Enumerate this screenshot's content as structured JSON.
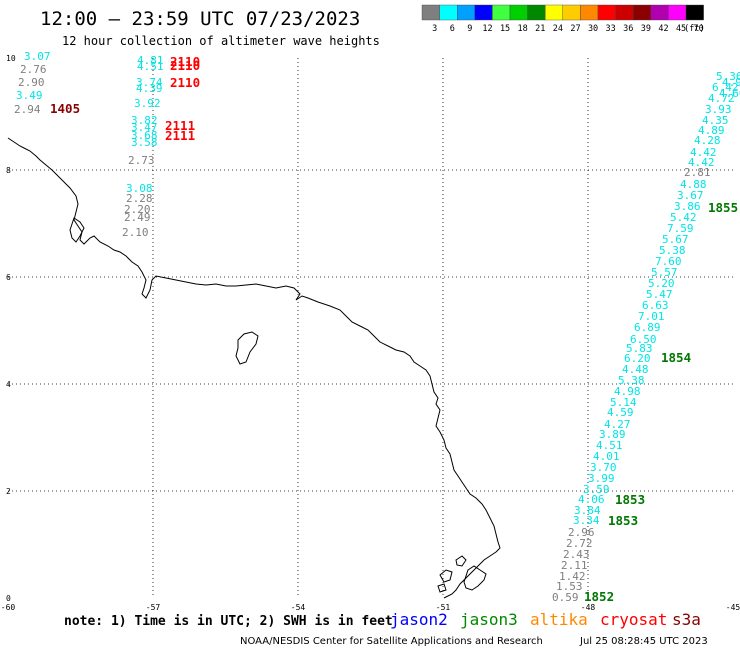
{
  "title": "12:00 — 23:59 UTC 07/23/2023",
  "subtitle": "12 hour collection of altimeter wave heights",
  "legend": {
    "unit": "(ft)",
    "bins": [
      {
        "label": "3",
        "color": "#7f7f7f"
      },
      {
        "label": "6",
        "color": "#00ffff"
      },
      {
        "label": "9",
        "color": "#00a0ff"
      },
      {
        "label": "12",
        "color": "#0000ff"
      },
      {
        "label": "15",
        "color": "#40ff40"
      },
      {
        "label": "18",
        "color": "#00d000"
      },
      {
        "label": "21",
        "color": "#008800"
      },
      {
        "label": "24",
        "color": "#ffff00"
      },
      {
        "label": "27",
        "color": "#ffcc00"
      },
      {
        "label": "30",
        "color": "#ff8800"
      },
      {
        "label": "33",
        "color": "#ff0000"
      },
      {
        "label": "36",
        "color": "#cc0000"
      },
      {
        "label": "39",
        "color": "#8b0000"
      },
      {
        "label": "42",
        "color": "#b000b0"
      },
      {
        "label": "45",
        "color": "#ff00ff"
      },
      {
        "label": "70",
        "color": "#000000"
      }
    ]
  },
  "axes": {
    "lon_labels": [
      "-60",
      "-57",
      "-54",
      "-51",
      "-48",
      "-45"
    ],
    "lat_labels": [
      "0",
      "2",
      "4",
      "6",
      "8",
      "10"
    ]
  },
  "colors": {
    "grey": "#7f7f7f",
    "cyan": "#00e5e5",
    "red": "#ff0000",
    "darkred": "#8b0000",
    "green": "#007700"
  },
  "measurements": [
    {
      "t": "3.07",
      "c": "cyan"
    },
    {
      "t": "2.76",
      "c": "grey"
    },
    {
      "t": "2.90",
      "c": "grey"
    },
    {
      "t": "3.49",
      "c": "cyan"
    },
    {
      "t": "2.94",
      "c": "grey"
    },
    {
      "t": "4.81",
      "c": "cyan"
    },
    {
      "t": "4.51",
      "c": "cyan"
    },
    {
      "t": "3.74",
      "c": "cyan"
    },
    {
      "t": "4.39",
      "c": "cyan"
    },
    {
      "t": "3.92",
      "c": "cyan"
    },
    {
      "t": "3.82",
      "c": "cyan"
    },
    {
      "t": "3.47",
      "c": "cyan"
    },
    {
      "t": "3.68",
      "c": "cyan"
    },
    {
      "t": "3.58",
      "c": "cyan"
    },
    {
      "t": "2.73",
      "c": "grey"
    },
    {
      "t": "3.08",
      "c": "cyan"
    },
    {
      "t": "2.28",
      "c": "grey"
    },
    {
      "t": "2.20",
      "c": "grey"
    },
    {
      "t": "2.49",
      "c": "grey"
    },
    {
      "t": "2.10",
      "c": "grey"
    },
    {
      "t": "4.9",
      "c": "cyan"
    },
    {
      "t": "4.60",
      "c": "cyan"
    },
    {
      "t": "5.36",
      "c": "cyan"
    },
    {
      "t": "6.42",
      "c": "cyan"
    },
    {
      "t": "4.72",
      "c": "cyan"
    },
    {
      "t": "3.93",
      "c": "cyan"
    },
    {
      "t": "4.35",
      "c": "cyan"
    },
    {
      "t": "4.89",
      "c": "cyan"
    },
    {
      "t": "4.28",
      "c": "cyan"
    },
    {
      "t": "4.42",
      "c": "cyan"
    },
    {
      "t": "4.42",
      "c": "cyan"
    },
    {
      "t": "2.81",
      "c": "grey"
    },
    {
      "t": "4.88",
      "c": "cyan"
    },
    {
      "t": "3.67",
      "c": "cyan"
    },
    {
      "t": "3.86",
      "c": "cyan"
    },
    {
      "t": "5.42",
      "c": "cyan"
    },
    {
      "t": "7.59",
      "c": "cyan"
    },
    {
      "t": "5.67",
      "c": "cyan"
    },
    {
      "t": "5.38",
      "c": "cyan"
    },
    {
      "t": "7.60",
      "c": "cyan"
    },
    {
      "t": "5.57",
      "c": "cyan"
    },
    {
      "t": "5.20",
      "c": "cyan"
    },
    {
      "t": "5.47",
      "c": "cyan"
    },
    {
      "t": "6.63",
      "c": "cyan"
    },
    {
      "t": "7.01",
      "c": "cyan"
    },
    {
      "t": "6.89",
      "c": "cyan"
    },
    {
      "t": "6.50",
      "c": "cyan"
    },
    {
      "t": "5.83",
      "c": "cyan"
    },
    {
      "t": "6.20",
      "c": "cyan"
    },
    {
      "t": "4.48",
      "c": "cyan"
    },
    {
      "t": "5.38",
      "c": "cyan"
    },
    {
      "t": "4.98",
      "c": "cyan"
    },
    {
      "t": "5.14",
      "c": "cyan"
    },
    {
      "t": "4.59",
      "c": "cyan"
    },
    {
      "t": "4.27",
      "c": "cyan"
    },
    {
      "t": "3.89",
      "c": "cyan"
    },
    {
      "t": "4.51",
      "c": "cyan"
    },
    {
      "t": "4.01",
      "c": "cyan"
    },
    {
      "t": "3.70",
      "c": "cyan"
    },
    {
      "t": "3.99",
      "c": "cyan"
    },
    {
      "t": "3.59",
      "c": "cyan"
    },
    {
      "t": "4.06",
      "c": "cyan"
    },
    {
      "t": "3.84",
      "c": "cyan"
    },
    {
      "t": "3.34",
      "c": "cyan"
    },
    {
      "t": "2.96",
      "c": "grey"
    },
    {
      "t": "2.72",
      "c": "grey"
    },
    {
      "t": "2.43",
      "c": "grey"
    },
    {
      "t": "2.11",
      "c": "grey"
    },
    {
      "t": "1.42",
      "c": "grey"
    },
    {
      "t": "1.53",
      "c": "grey"
    },
    {
      "t": "0.59",
      "c": "grey"
    }
  ],
  "pass_times": [
    {
      "t": "1405",
      "c": "darkred"
    },
    {
      "t": "2110",
      "c": "red"
    },
    {
      "t": "2110",
      "c": "red"
    },
    {
      "t": "2110",
      "c": "red"
    },
    {
      "t": "2111",
      "c": "red"
    },
    {
      "t": "2111",
      "c": "red"
    },
    {
      "t": "1855",
      "c": "green"
    },
    {
      "t": "1854",
      "c": "green"
    },
    {
      "t": "1853",
      "c": "green"
    },
    {
      "t": "1853",
      "c": "green"
    },
    {
      "t": "1852",
      "c": "green"
    }
  ],
  "footer": {
    "note": "note: 1) Time is in UTC; 2) SWH is in feet",
    "satellites": [
      {
        "name": "jason2",
        "color": "#0000ff"
      },
      {
        "name": "jason3",
        "color": "#008800"
      },
      {
        "name": "altika",
        "color": "#ff8800"
      },
      {
        "name": "cryosat",
        "color": "#ff0000"
      },
      {
        "name": "s3a",
        "color": "#8b0000"
      }
    ],
    "credit": "NOAA/NESDIS Center for Satellite Applications and Research",
    "timestamp": "Jul 25 08:28:45 UTC 2023"
  }
}
